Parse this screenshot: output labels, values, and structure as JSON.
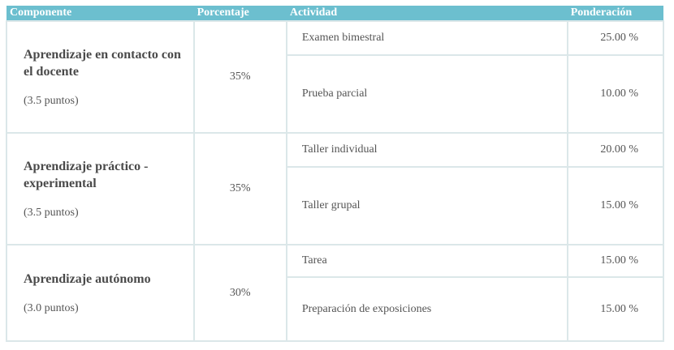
{
  "table": {
    "headers": {
      "componente": "Componente",
      "porcentaje": "Porcentaje",
      "actividad": "Actividad",
      "ponderacion": "Ponderación"
    },
    "groups": [
      {
        "title": "Aprendizaje en contacto con el docente",
        "points": "(3.5 puntos)",
        "percent": "35%",
        "activities": [
          {
            "name": "Examen bimestral",
            "weight": "25.00 %"
          },
          {
            "name": "Prueba parcial",
            "weight": "10.00 %"
          }
        ]
      },
      {
        "title": "Aprendizaje práctico - experimental",
        "points": "(3.5 puntos)",
        "percent": "35%",
        "activities": [
          {
            "name": "Taller individual",
            "weight": "20.00 %"
          },
          {
            "name": "Taller grupal",
            "weight": "15.00 %"
          }
        ]
      },
      {
        "title": "Aprendizaje autónomo",
        "points": "(3.0 puntos)",
        "percent": "30%",
        "activities": [
          {
            "name": "Tarea",
            "weight": "15.00 %"
          },
          {
            "name": "Preparación de exposiciones",
            "weight": "15.00 %"
          }
        ]
      }
    ]
  },
  "colors": {
    "header_bg": "#6cbfcf",
    "header_text": "#ffffff",
    "border": "#dbe7e9",
    "text": "#555555"
  }
}
